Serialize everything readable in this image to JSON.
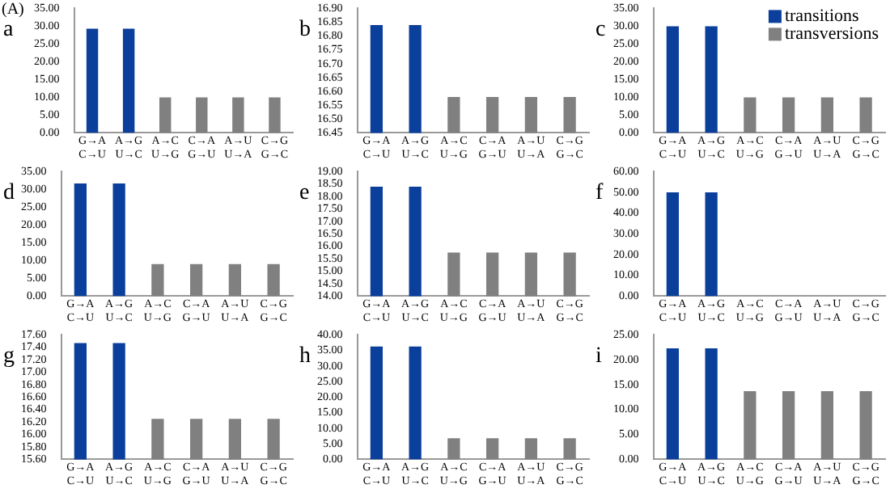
{
  "chart_data": [
    {
      "type": "bar",
      "title": "a",
      "annotations": [
        "(A)"
      ],
      "stacked": true,
      "categories": [
        "G→A\nC→U",
        "A→G\nU→C",
        "A→C\nU→G",
        "C→A\nG→U",
        "A→U\nU→A",
        "C→G\nG→C"
      ],
      "ylim": [
        0,
        35
      ],
      "yticks": [
        {
          "value": 0,
          "label": "0.00"
        },
        {
          "value": 5,
          "label": "5.00"
        },
        {
          "value": 10,
          "label": "10.00"
        },
        {
          "value": 15,
          "label": "15.00"
        },
        {
          "value": 20,
          "label": "20.00"
        },
        {
          "value": 25,
          "label": "25.00"
        },
        {
          "value": 30,
          "label": "30.00"
        },
        {
          "value": 35,
          "label": "35.00"
        }
      ],
      "series": [
        {
          "color": "#0a3f9c",
          "values": [
            29.3,
            29.3,
            null,
            null,
            null,
            null
          ]
        },
        {
          "color": "#808080",
          "values": [
            null,
            null,
            10,
            10,
            10,
            10
          ]
        }
      ]
    },
    {
      "type": "bar",
      "title": "b",
      "stacked": true,
      "categories": [
        "G→A\nC→U",
        "A→G\nU→C",
        "A→C\nU→G",
        "C→A\nG→U",
        "A→U\nU→A",
        "C→G\nG→C"
      ],
      "ylim": [
        16.45,
        16.9
      ],
      "yticks": [
        {
          "value": 16.45,
          "label": "16.45"
        },
        {
          "value": 16.5,
          "label": "16.50"
        },
        {
          "value": 16.55,
          "label": "16.55"
        },
        {
          "value": 16.6,
          "label": "16.60"
        },
        {
          "value": 16.65,
          "label": "16.65"
        },
        {
          "value": 16.7,
          "label": "16.70"
        },
        {
          "value": 16.75,
          "label": "16.75"
        },
        {
          "value": 16.8,
          "label": "16.80"
        },
        {
          "value": 16.85,
          "label": "16.85"
        },
        {
          "value": 16.9,
          "label": "16.90"
        }
      ],
      "series": [
        {
          "color": "#0a3f9c",
          "values": [
            16.84,
            16.84,
            null,
            null,
            null,
            null
          ]
        },
        {
          "color": "#808080",
          "values": [
            null,
            null,
            16.58,
            16.58,
            16.58,
            16.58
          ]
        }
      ]
    },
    {
      "type": "bar",
      "title": "c",
      "stacked": true,
      "legend": "top right",
      "categories": [
        "G→A\nC→U",
        "A→G\nU→C",
        "A→C\nU→G",
        "C→A\nG→U",
        "A→U\nU→A",
        "C→G\nG→C"
      ],
      "ylim": [
        0,
        35
      ],
      "yticks": [
        {
          "value": 0,
          "label": "0.00"
        },
        {
          "value": 5,
          "label": "5.00"
        },
        {
          "value": 10,
          "label": "10.00"
        },
        {
          "value": 15,
          "label": "15.00"
        },
        {
          "value": 20,
          "label": "20.00"
        },
        {
          "value": 25,
          "label": "25.00"
        },
        {
          "value": 30,
          "label": "30.00"
        },
        {
          "value": 35,
          "label": "35.00"
        }
      ],
      "series": [
        {
          "name": "transitions",
          "color": "#0a3f9c",
          "values": [
            30,
            30,
            null,
            null,
            null,
            null
          ]
        },
        {
          "name": "transversions",
          "color": "#808080",
          "values": [
            null,
            null,
            10,
            10,
            10,
            10
          ]
        }
      ]
    },
    {
      "type": "bar",
      "title": "d",
      "stacked": true,
      "categories": [
        "G→A\nC→U",
        "A→G\nU→C",
        "A→C\nU→G",
        "C→A\nG→U",
        "A→U\nU→A",
        "C→G\nG→C"
      ],
      "ylim": [
        0,
        35
      ],
      "yticks": [
        {
          "value": 0,
          "label": "0.00"
        },
        {
          "value": 5,
          "label": "5.00"
        },
        {
          "value": 10,
          "label": "10.00"
        },
        {
          "value": 15,
          "label": "15.00"
        },
        {
          "value": 20,
          "label": "20.00"
        },
        {
          "value": 25,
          "label": "25.00"
        },
        {
          "value": 30,
          "label": "30.00"
        },
        {
          "value": 35,
          "label": "35.00"
        }
      ],
      "series": [
        {
          "color": "#0a3f9c",
          "values": [
            31.7,
            31.7,
            null,
            null,
            null,
            null
          ]
        },
        {
          "color": "#808080",
          "values": [
            null,
            null,
            9,
            9,
            9,
            9
          ]
        }
      ]
    },
    {
      "type": "bar",
      "title": "e",
      "stacked": true,
      "categories": [
        "G→A\nC→U",
        "A→G\nU→C",
        "A→C\nU→G",
        "C→A\nG→U",
        "A→U\nU→A",
        "C→G\nG→C"
      ],
      "ylim": [
        14,
        19
      ],
      "yticks": [
        {
          "value": 14,
          "label": "14.00"
        },
        {
          "value": 14.5,
          "label": "14.50"
        },
        {
          "value": 15,
          "label": "15.00"
        },
        {
          "value": 15.5,
          "label": "15.50"
        },
        {
          "value": 16,
          "label": "16.00"
        },
        {
          "value": 16.5,
          "label": "16.50"
        },
        {
          "value": 17,
          "label": "17.00"
        },
        {
          "value": 17.5,
          "label": "17.50"
        },
        {
          "value": 18,
          "label": "18.00"
        },
        {
          "value": 18.5,
          "label": "18.50"
        },
        {
          "value": 19,
          "label": "19.00"
        }
      ],
      "series": [
        {
          "color": "#0a3f9c",
          "values": [
            18.4,
            18.4,
            null,
            null,
            null,
            null
          ]
        },
        {
          "color": "#808080",
          "values": [
            null,
            null,
            15.75,
            15.75,
            15.75,
            15.75
          ]
        }
      ]
    },
    {
      "type": "bar",
      "title": "f",
      "stacked": true,
      "categories": [
        "G→A\nC→U",
        "A→G\nU→C",
        "A→C\nU→G",
        "C→A\nG→U",
        "A→U\nU→A",
        "C→G\nG→C"
      ],
      "ylim": [
        0,
        60
      ],
      "yticks": [
        {
          "value": 0,
          "label": "0.00"
        },
        {
          "value": 10,
          "label": "10.00"
        },
        {
          "value": 20,
          "label": "20.00"
        },
        {
          "value": 30,
          "label": "30.00"
        },
        {
          "value": 40,
          "label": "40.00"
        },
        {
          "value": 50,
          "label": "50.00"
        },
        {
          "value": 60,
          "label": "60.00"
        }
      ],
      "series": [
        {
          "color": "#0a3f9c",
          "values": [
            50,
            50,
            null,
            null,
            null,
            null
          ]
        },
        {
          "color": "#808080",
          "values": [
            null,
            null,
            0,
            0,
            0,
            0
          ]
        }
      ]
    },
    {
      "type": "bar",
      "title": "g",
      "stacked": true,
      "categories": [
        "G→A\nC→U",
        "A→G\nU→C",
        "A→C\nU→G",
        "C→A\nG→U",
        "A→U\nU→A",
        "C→G\nG→C"
      ],
      "ylim": [
        15.6,
        17.6
      ],
      "yticks": [
        {
          "value": 15.6,
          "label": "15.60"
        },
        {
          "value": 15.8,
          "label": "15.80"
        },
        {
          "value": 16,
          "label": "16.00"
        },
        {
          "value": 16.2,
          "label": "16.20"
        },
        {
          "value": 16.4,
          "label": "16.40"
        },
        {
          "value": 16.6,
          "label": "16.60"
        },
        {
          "value": 16.8,
          "label": "16.80"
        },
        {
          "value": 17,
          "label": "17.00"
        },
        {
          "value": 17.2,
          "label": "17.20"
        },
        {
          "value": 17.4,
          "label": "17.40"
        },
        {
          "value": 17.6,
          "label": "17.60"
        }
      ],
      "series": [
        {
          "color": "#0a3f9c",
          "values": [
            17.47,
            17.47,
            null,
            null,
            null,
            null
          ]
        },
        {
          "color": "#808080",
          "values": [
            null,
            null,
            16.25,
            16.25,
            16.25,
            16.25
          ]
        }
      ]
    },
    {
      "type": "bar",
      "title": "h",
      "stacked": true,
      "categories": [
        "G→A\nC→U",
        "A→G\nU→C",
        "A→C\nU→G",
        "C→A\nG→U",
        "A→U\nU→A",
        "C→G\nG→C"
      ],
      "ylim": [
        0,
        40
      ],
      "yticks": [
        {
          "value": 0,
          "label": "0.00"
        },
        {
          "value": 5,
          "label": "5.00"
        },
        {
          "value": 10,
          "label": "10.00"
        },
        {
          "value": 15,
          "label": "15.00"
        },
        {
          "value": 20,
          "label": "20.00"
        },
        {
          "value": 25,
          "label": "25.00"
        },
        {
          "value": 30,
          "label": "30.00"
        },
        {
          "value": 35,
          "label": "35.00"
        },
        {
          "value": 40,
          "label": "40.00"
        }
      ],
      "series": [
        {
          "color": "#0a3f9c",
          "values": [
            36.3,
            36.3,
            null,
            null,
            null,
            null
          ]
        },
        {
          "color": "#808080",
          "values": [
            null,
            null,
            6.8,
            6.8,
            6.8,
            6.8
          ]
        }
      ]
    },
    {
      "type": "bar",
      "title": "i",
      "stacked": true,
      "categories": [
        "G→A\nC→U",
        "A→G\nU→C",
        "A→C\nU→G",
        "C→A\nG→U",
        "A→U\nU→A",
        "C→G\nG→C"
      ],
      "ylim": [
        0,
        25
      ],
      "yticks": [
        {
          "value": 0,
          "label": "0.00"
        },
        {
          "value": 5,
          "label": "5.00"
        },
        {
          "value": 10,
          "label": "10.00"
        },
        {
          "value": 15,
          "label": "15.00"
        },
        {
          "value": 20,
          "label": "20.00"
        },
        {
          "value": 25,
          "label": "25.00"
        }
      ],
      "series": [
        {
          "color": "#0a3f9c",
          "values": [
            22.3,
            22.3,
            null,
            null,
            null,
            null
          ]
        },
        {
          "color": "#808080",
          "values": [
            null,
            null,
            13.7,
            13.7,
            13.7,
            13.7
          ]
        }
      ]
    }
  ]
}
